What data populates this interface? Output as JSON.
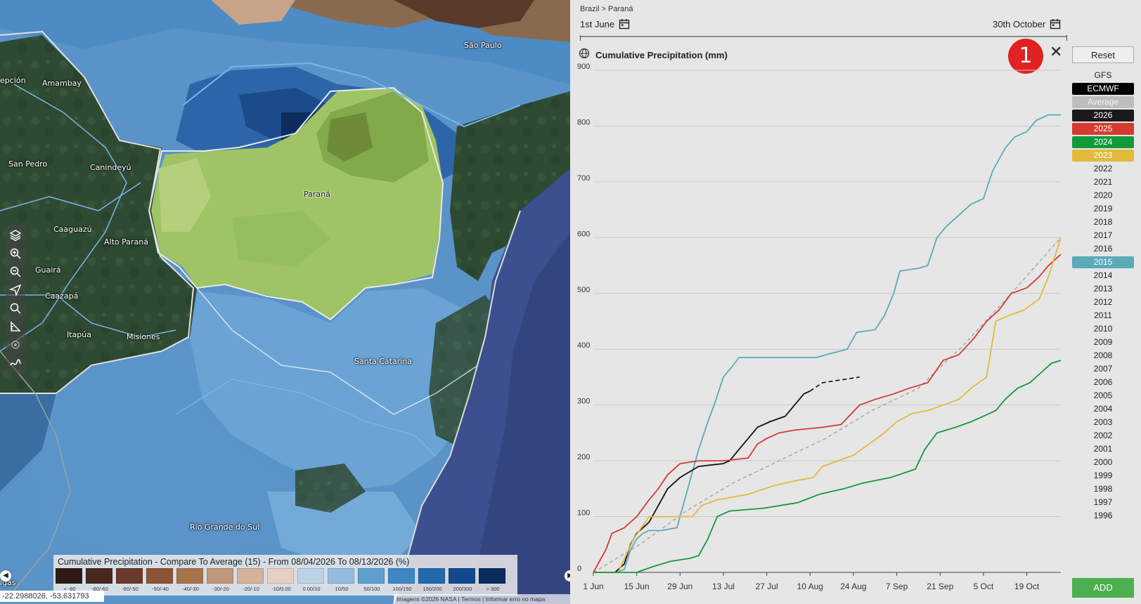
{
  "map": {
    "labels": {
      "sao_paulo": "São Paulo",
      "amambay": "Amambay",
      "epcion": "epción",
      "san_pedro": "San Pedro",
      "canindeyu": "Canindeyú",
      "parana": "Paraná",
      "caaguazu": "Caaguazú",
      "alto_parana": "Alto Paraná",
      "guaira": "Guairá",
      "caazapa": "Caazapá",
      "itapua": "Itapúa",
      "misiones": "Misiones",
      "santa_catarina": "Santa Catarina",
      "rio_grande": "Rio Grande do Sul",
      "gas": "igas"
    },
    "legend": {
      "title": "Cumulative Precipitation - Compare To Average (15) - From 08/04/2026 To 08/13/2026 (%)",
      "items": [
        {
          "label": "< -80",
          "color": "#2e1a14"
        },
        {
          "label": "-80/-60",
          "color": "#4a2620"
        },
        {
          "label": "-60/-50",
          "color": "#6b3a2a"
        },
        {
          "label": "-50/-40",
          "color": "#8b5535"
        },
        {
          "label": "-40/-30",
          "color": "#a8734a"
        },
        {
          "label": "-30/-20",
          "color": "#c2967a"
        },
        {
          "label": "-20/-10",
          "color": "#d3b19b"
        },
        {
          "label": "-10/0.00",
          "color": "#e4cfc0"
        },
        {
          "label": "0.00/10",
          "color": "#bcd3e6"
        },
        {
          "label": "10/50",
          "color": "#93bcdd"
        },
        {
          "label": "50/100",
          "color": "#5f9fd0"
        },
        {
          "label": "100/150",
          "color": "#3f86c4"
        },
        {
          "label": "150/200",
          "color": "#2468ad"
        },
        {
          "label": "200/300",
          "color": "#12498e"
        },
        {
          "label": "> 300",
          "color": "#0b2d5e"
        }
      ]
    },
    "coords": "-22.2988026, -53.631793",
    "attribution": "Imagens ©2026 NASA | Termos | Informar erro no mapa"
  },
  "panel": {
    "breadcrumb": "Brazil > Paraná",
    "start_date": "1st June",
    "end_date": "30th October",
    "chart_title": "Cumulative Precipitation (mm)",
    "badge": "1",
    "reset": "Reset",
    "model": "GFS",
    "add": "ADD",
    "years": [
      {
        "label": "ECMWF",
        "bg": "#000000",
        "fg": "#ffffff"
      },
      {
        "label": "Average",
        "bg": "#bdbdbd",
        "fg": "#f2f2f2"
      },
      {
        "label": "2026",
        "bg": "#1a1a1a",
        "fg": "#ffffff"
      },
      {
        "label": "2025",
        "bg": "#d63a2f",
        "fg": "#ffffff"
      },
      {
        "label": "2024",
        "bg": "#129a3a",
        "fg": "#ffffff"
      },
      {
        "label": "2023",
        "bg": "#e3b93c",
        "fg": "#ffffff"
      },
      {
        "label": "2022"
      },
      {
        "label": "2021"
      },
      {
        "label": "2020"
      },
      {
        "label": "2019"
      },
      {
        "label": "2018"
      },
      {
        "label": "2017"
      },
      {
        "label": "2016"
      },
      {
        "label": "2015",
        "bg": "#5aaab8",
        "fg": "#ffffff"
      },
      {
        "label": "2014"
      },
      {
        "label": "2013"
      },
      {
        "label": "2012"
      },
      {
        "label": "2011"
      },
      {
        "label": "2010"
      },
      {
        "label": "2009"
      },
      {
        "label": "2008"
      },
      {
        "label": "2007"
      },
      {
        "label": "2006"
      },
      {
        "label": "2005"
      },
      {
        "label": "2004"
      },
      {
        "label": "2003"
      },
      {
        "label": "2002"
      },
      {
        "label": "2001"
      },
      {
        "label": "2000"
      },
      {
        "label": "1999"
      },
      {
        "label": "1998"
      },
      {
        "label": "1997"
      },
      {
        "label": "1996"
      }
    ]
  },
  "chart_data": {
    "type": "line",
    "title": "Cumulative Precipitation (mm)",
    "xlabel": "",
    "ylabel": "",
    "ylim": [
      0,
      900
    ],
    "yticks": [
      0,
      100,
      200,
      300,
      400,
      500,
      600,
      700,
      800,
      900
    ],
    "xlim_days": [
      0,
      151
    ],
    "xticks": [
      {
        "day": 0,
        "label": "1 Jun"
      },
      {
        "day": 14,
        "label": "15 Jun"
      },
      {
        "day": 28,
        "label": "29 Jun"
      },
      {
        "day": 42,
        "label": "13 Jul"
      },
      {
        "day": 56,
        "label": "27 Jul"
      },
      {
        "day": 70,
        "label": "10 Aug"
      },
      {
        "day": 84,
        "label": "24 Aug"
      },
      {
        "day": 98,
        "label": "7 Sep"
      },
      {
        "day": 112,
        "label": "21 Sep"
      },
      {
        "day": 126,
        "label": "5 Oct"
      },
      {
        "day": 140,
        "label": "19 Oct"
      }
    ],
    "series": [
      {
        "name": "2015",
        "color": "#5aaab8",
        "points": [
          [
            0,
            0
          ],
          [
            7,
            0
          ],
          [
            10,
            5
          ],
          [
            12,
            40
          ],
          [
            14,
            60
          ],
          [
            16,
            70
          ],
          [
            18,
            75
          ],
          [
            22,
            75
          ],
          [
            27,
            80
          ],
          [
            29,
            120
          ],
          [
            31,
            160
          ],
          [
            34,
            220
          ],
          [
            37,
            270
          ],
          [
            39,
            300
          ],
          [
            42,
            350
          ],
          [
            45,
            370
          ],
          [
            47,
            385
          ],
          [
            55,
            385
          ],
          [
            72,
            385
          ],
          [
            75,
            390
          ],
          [
            82,
            400
          ],
          [
            85,
            430
          ],
          [
            91,
            435
          ],
          [
            94,
            460
          ],
          [
            97,
            500
          ],
          [
            99,
            540
          ],
          [
            105,
            545
          ],
          [
            108,
            550
          ],
          [
            111,
            600
          ],
          [
            114,
            620
          ],
          [
            118,
            640
          ],
          [
            122,
            660
          ],
          [
            126,
            670
          ],
          [
            129,
            720
          ],
          [
            133,
            760
          ],
          [
            136,
            780
          ],
          [
            140,
            790
          ],
          [
            143,
            810
          ],
          [
            147,
            820
          ],
          [
            151,
            820
          ]
        ]
      },
      {
        "name": "Average",
        "color": "#aaaaaa",
        "dash": true,
        "points": [
          [
            0,
            0
          ],
          [
            15,
            50
          ],
          [
            30,
            110
          ],
          [
            45,
            160
          ],
          [
            60,
            200
          ],
          [
            75,
            240
          ],
          [
            90,
            290
          ],
          [
            105,
            330
          ],
          [
            120,
            410
          ],
          [
            135,
            500
          ],
          [
            151,
            600
          ]
        ]
      },
      {
        "name": "2026",
        "color": "#111111",
        "points": [
          [
            0,
            0
          ],
          [
            7,
            0
          ],
          [
            10,
            15
          ],
          [
            12,
            50
          ],
          [
            14,
            70
          ],
          [
            18,
            90
          ],
          [
            21,
            120
          ],
          [
            24,
            150
          ],
          [
            28,
            170
          ],
          [
            31,
            180
          ],
          [
            34,
            190
          ],
          [
            42,
            195
          ],
          [
            44,
            200
          ],
          [
            47,
            220
          ],
          [
            50,
            240
          ],
          [
            53,
            260
          ],
          [
            57,
            270
          ],
          [
            62,
            280
          ],
          [
            65,
            300
          ],
          [
            68,
            320
          ],
          [
            70,
            325
          ]
        ]
      },
      {
        "name": "ECMWF",
        "color": "#111111",
        "dash": true,
        "points": [
          [
            70,
            325
          ],
          [
            74,
            340
          ],
          [
            80,
            345
          ],
          [
            86,
            350
          ]
        ]
      },
      {
        "name": "2025",
        "color": "#d63a2f",
        "points": [
          [
            0,
            0
          ],
          [
            2,
            20
          ],
          [
            4,
            40
          ],
          [
            6,
            70
          ],
          [
            10,
            80
          ],
          [
            14,
            100
          ],
          [
            18,
            130
          ],
          [
            21,
            150
          ],
          [
            24,
            175
          ],
          [
            28,
            195
          ],
          [
            34,
            200
          ],
          [
            42,
            200
          ],
          [
            50,
            205
          ],
          [
            53,
            230
          ],
          [
            56,
            240
          ],
          [
            60,
            250
          ],
          [
            65,
            255
          ],
          [
            74,
            260
          ],
          [
            80,
            265
          ],
          [
            86,
            300
          ],
          [
            91,
            310
          ],
          [
            97,
            320
          ],
          [
            102,
            330
          ],
          [
            108,
            340
          ],
          [
            113,
            380
          ],
          [
            118,
            390
          ],
          [
            123,
            420
          ],
          [
            127,
            450
          ],
          [
            131,
            470
          ],
          [
            135,
            500
          ],
          [
            140,
            510
          ],
          [
            144,
            530
          ],
          [
            147,
            550
          ],
          [
            151,
            570
          ]
        ]
      },
      {
        "name": "2023",
        "color": "#e3b93c",
        "points": [
          [
            0,
            0
          ],
          [
            8,
            0
          ],
          [
            13,
            60
          ],
          [
            18,
            100
          ],
          [
            25,
            100
          ],
          [
            32,
            100
          ],
          [
            35,
            120
          ],
          [
            40,
            130
          ],
          [
            50,
            140
          ],
          [
            58,
            155
          ],
          [
            66,
            165
          ],
          [
            71,
            170
          ],
          [
            74,
            190
          ],
          [
            79,
            200
          ],
          [
            84,
            210
          ],
          [
            89,
            230
          ],
          [
            94,
            250
          ],
          [
            98,
            270
          ],
          [
            103,
            285
          ],
          [
            108,
            290
          ],
          [
            113,
            300
          ],
          [
            118,
            310
          ],
          [
            122,
            330
          ],
          [
            127,
            350
          ],
          [
            130,
            450
          ],
          [
            134,
            460
          ],
          [
            139,
            470
          ],
          [
            144,
            490
          ],
          [
            147,
            530
          ],
          [
            151,
            600
          ]
        ]
      },
      {
        "name": "2024",
        "color": "#129a3a",
        "points": [
          [
            0,
            0
          ],
          [
            14,
            0
          ],
          [
            19,
            10
          ],
          [
            25,
            20
          ],
          [
            31,
            25
          ],
          [
            34,
            30
          ],
          [
            37,
            60
          ],
          [
            40,
            100
          ],
          [
            44,
            110
          ],
          [
            55,
            115
          ],
          [
            66,
            125
          ],
          [
            73,
            140
          ],
          [
            81,
            150
          ],
          [
            87,
            160
          ],
          [
            96,
            170
          ],
          [
            104,
            185
          ],
          [
            107,
            220
          ],
          [
            111,
            250
          ],
          [
            117,
            260
          ],
          [
            122,
            270
          ],
          [
            126,
            280
          ],
          [
            130,
            290
          ],
          [
            133,
            310
          ],
          [
            137,
            330
          ],
          [
            141,
            340
          ],
          [
            145,
            360
          ],
          [
            148,
            375
          ],
          [
            151,
            380
          ]
        ]
      }
    ]
  }
}
